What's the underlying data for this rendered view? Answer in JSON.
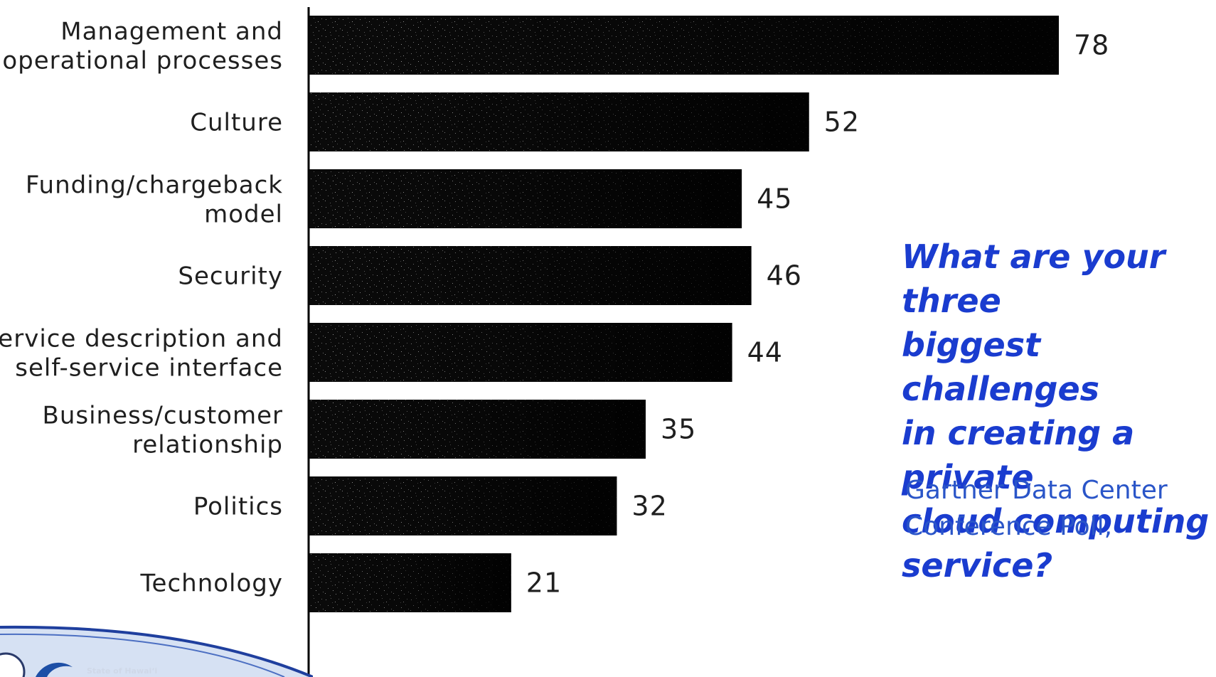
{
  "chart_data": {
    "type": "bar",
    "orientation": "horizontal",
    "categories": [
      [
        "Management and",
        "operational processes"
      ],
      [
        "Culture"
      ],
      [
        "Funding/chargeback",
        "model"
      ],
      [
        "Security"
      ],
      [
        "Service description and",
        "self-service interface"
      ],
      [
        "Business/customer",
        "relationship"
      ],
      [
        "Politics"
      ],
      [
        "Technology"
      ]
    ],
    "values": [
      78,
      52,
      45,
      46,
      44,
      35,
      32,
      21
    ],
    "xlim": [
      0,
      80
    ],
    "grid": false,
    "bar_color": "#0a0a0a"
  },
  "annotation": {
    "question": "What are your three\nbiggest challenges\nin creating a private\ncloud computing\nservice?",
    "source": "Gartner Data Center\nConference Poll,"
  },
  "branding": {
    "logo_text": "State of Hawaiʻi",
    "accent_color": "#1f3f9e"
  }
}
